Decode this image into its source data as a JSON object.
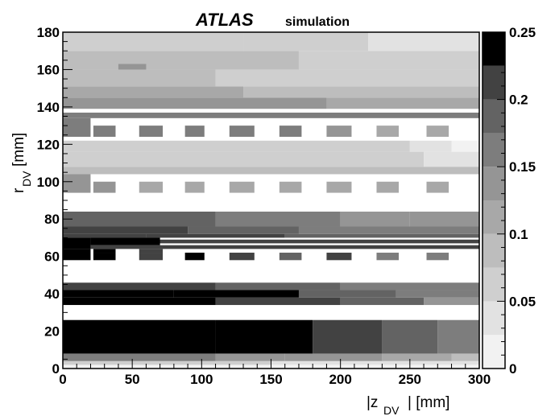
{
  "chart_data": {
    "type": "heatmap",
    "title": "ATLAS",
    "subtitle": "simulation",
    "xlabel": {
      "main": "|z",
      "sub": "DV",
      "tail": "| [mm]"
    },
    "ylabel": {
      "main": "r",
      "sub": "DV",
      "tail": " [mm]"
    },
    "xlim": [
      0,
      300
    ],
    "ylim": [
      0,
      180
    ],
    "x_ticks": [
      "0",
      "50",
      "100",
      "150",
      "200",
      "250",
      "300"
    ],
    "y_ticks": [
      "0",
      "20",
      "40",
      "60",
      "80",
      "100",
      "120",
      "140",
      "160",
      "180"
    ],
    "colorbar": {
      "min": 0,
      "max": 0.25,
      "levels": 10,
      "ticks": [
        "0",
        "0.05",
        "0.1",
        "0.15",
        "0.2",
        "0.25"
      ],
      "level_colors": [
        "#f2f2f2",
        "#e2e2e2",
        "#cfcfcf",
        "#bdbdbd",
        "#a8a8a8",
        "#959595",
        "#7d7d7d",
        "#636363",
        "#424242",
        "#000000"
      ]
    },
    "bands": [
      {
        "r": [
          0,
          2
        ],
        "segments": [
          [
            0,
            300,
            0.005
          ]
        ]
      },
      {
        "r": [
          2,
          4
        ],
        "segments": [
          [
            0,
            150,
            0.06
          ],
          [
            150,
            250,
            0.045
          ],
          [
            250,
            300,
            0.03
          ]
        ]
      },
      {
        "r": [
          4,
          8
        ],
        "segments": [
          [
            0,
            110,
            0.15
          ],
          [
            110,
            160,
            0.145
          ],
          [
            160,
            230,
            0.14
          ],
          [
            230,
            280,
            0.12
          ],
          [
            280,
            300,
            0.08
          ]
        ]
      },
      {
        "r": [
          8,
          26
        ],
        "segments": [
          [
            0,
            110,
            0.25
          ],
          [
            110,
            180,
            0.25
          ],
          [
            180,
            230,
            0.2
          ],
          [
            230,
            270,
            0.18
          ],
          [
            270,
            300,
            0.15
          ]
        ]
      },
      {
        "r": [
          26,
          34
        ],
        "segments": [
          [
            0,
            300,
            0.0
          ]
        ]
      },
      {
        "r": [
          34,
          38
        ],
        "segments": [
          [
            0,
            110,
            0.25
          ],
          [
            110,
            200,
            0.22
          ],
          [
            200,
            260,
            0.18
          ],
          [
            260,
            300,
            0.14
          ]
        ]
      },
      {
        "r": [
          38,
          42
        ],
        "segments": [
          [
            0,
            80,
            0.25
          ],
          [
            80,
            170,
            0.24
          ],
          [
            170,
            240,
            0.19
          ],
          [
            240,
            300,
            0.15
          ]
        ]
      },
      {
        "r": [
          42,
          46
        ],
        "segments": [
          [
            0,
            110,
            0.21
          ],
          [
            110,
            200,
            0.19
          ],
          [
            200,
            300,
            0.16
          ]
        ]
      },
      {
        "r": [
          46,
          56
        ],
        "segments": [
          [
            0,
            300,
            0.0
          ]
        ]
      },
      {
        "r": [
          56,
          58
        ],
        "segments": [
          [
            0,
            300,
            0.0
          ]
        ]
      },
      {
        "r": [
          58,
          64
        ],
        "segments": [
          [
            0,
            20,
            0.25
          ],
          [
            20,
            300,
            0.0
          ]
        ]
      },
      {
        "r": [
          64,
          70
        ],
        "segments": [
          [
            0,
            20,
            0.23
          ],
          [
            20,
            300,
            0.0
          ]
        ]
      },
      {
        "r": [
          70,
          72
        ],
        "segments": [
          [
            0,
            60,
            0.22
          ],
          [
            60,
            160,
            0.2
          ],
          [
            160,
            300,
            0.18
          ]
        ]
      },
      {
        "r": [
          72,
          76
        ],
        "segments": [
          [
            0,
            90,
            0.2
          ],
          [
            90,
            170,
            0.18
          ],
          [
            170,
            300,
            0.16
          ]
        ]
      },
      {
        "r": [
          76,
          84
        ],
        "segments": [
          [
            0,
            110,
            0.18
          ],
          [
            110,
            200,
            0.16
          ],
          [
            200,
            250,
            0.14
          ],
          [
            250,
            300,
            0.13
          ]
        ]
      },
      {
        "r": [
          84,
          94
        ],
        "segments": [
          [
            0,
            300,
            0.0
          ]
        ]
      },
      {
        "r": [
          94,
          104
        ],
        "segments": [
          [
            0,
            20,
            0.13
          ],
          [
            20,
            300,
            0.0
          ]
        ]
      },
      {
        "r": [
          104,
          108
        ],
        "segments": [
          [
            0,
            300,
            0.08
          ]
        ]
      },
      {
        "r": [
          108,
          116
        ],
        "segments": [
          [
            0,
            260,
            0.06
          ],
          [
            260,
            300,
            0.04
          ]
        ]
      },
      {
        "r": [
          116,
          122
        ],
        "segments": [
          [
            0,
            250,
            0.05
          ],
          [
            250,
            280,
            0.03
          ],
          [
            280,
            300,
            0.01
          ]
        ]
      },
      {
        "r": [
          122,
          124
        ],
        "segments": [
          [
            0,
            300,
            0.0
          ]
        ]
      },
      {
        "r": [
          124,
          134
        ],
        "segments": [
          [
            0,
            20,
            0.15
          ],
          [
            20,
            300,
            0.0
          ]
        ]
      },
      {
        "r": [
          134,
          137
        ],
        "segments": [
          [
            0,
            300,
            0.15
          ]
        ]
      },
      {
        "r": [
          137,
          139
        ],
        "segments": [
          [
            0,
            300,
            0.0
          ]
        ]
      },
      {
        "r": [
          139,
          145
        ],
        "segments": [
          [
            0,
            190,
            0.13
          ],
          [
            190,
            300,
            0.1
          ]
        ]
      },
      {
        "r": [
          145,
          151
        ],
        "segments": [
          [
            0,
            130,
            0.11
          ],
          [
            130,
            300,
            0.08
          ]
        ]
      },
      {
        "r": [
          151,
          160
        ],
        "segments": [
          [
            0,
            110,
            0.09
          ],
          [
            110,
            300,
            0.06
          ]
        ]
      },
      {
        "r": [
          160,
          170
        ],
        "segments": [
          [
            0,
            170,
            0.08
          ],
          [
            170,
            300,
            0.05
          ]
        ]
      },
      {
        "r": [
          170,
          180
        ],
        "segments": [
          [
            0,
            130,
            0.07
          ],
          [
            130,
            220,
            0.05
          ],
          [
            220,
            300,
            0.04
          ]
        ]
      }
    ],
    "blocks": [
      {
        "z": [
          22,
          38
        ],
        "r": [
          94,
          100
        ],
        "v": 0.13
      },
      {
        "z": [
          55,
          72
        ],
        "r": [
          94,
          100
        ],
        "v": 0.12
      },
      {
        "z": [
          88,
          102
        ],
        "r": [
          94,
          100
        ],
        "v": 0.12
      },
      {
        "z": [
          120,
          138
        ],
        "r": [
          94,
          100
        ],
        "v": 0.12
      },
      {
        "z": [
          156,
          172
        ],
        "r": [
          94,
          100
        ],
        "v": 0.12
      },
      {
        "z": [
          190,
          208
        ],
        "r": [
          94,
          100
        ],
        "v": 0.11
      },
      {
        "z": [
          226,
          242
        ],
        "r": [
          94,
          100
        ],
        "v": 0.1
      },
      {
        "z": [
          262,
          278
        ],
        "r": [
          94,
          100
        ],
        "v": 0.1
      },
      {
        "z": [
          22,
          38
        ],
        "r": [
          124,
          130
        ],
        "v": 0.15
      },
      {
        "z": [
          55,
          72
        ],
        "r": [
          124,
          130
        ],
        "v": 0.15
      },
      {
        "z": [
          88,
          102
        ],
        "r": [
          124,
          130
        ],
        "v": 0.15
      },
      {
        "z": [
          120,
          138
        ],
        "r": [
          124,
          130
        ],
        "v": 0.15
      },
      {
        "z": [
          156,
          172
        ],
        "r": [
          124,
          130
        ],
        "v": 0.15
      },
      {
        "z": [
          190,
          208
        ],
        "r": [
          124,
          130
        ],
        "v": 0.13
      },
      {
        "z": [
          226,
          242
        ],
        "r": [
          124,
          130
        ],
        "v": 0.12
      },
      {
        "z": [
          262,
          278
        ],
        "r": [
          124,
          130
        ],
        "v": 0.11
      },
      {
        "z": [
          22,
          38
        ],
        "r": [
          58,
          62
        ],
        "v": 0.25
      },
      {
        "z": [
          55,
          72
        ],
        "r": [
          58,
          62
        ],
        "v": 0.22
      },
      {
        "z": [
          88,
          102
        ],
        "r": [
          58,
          62
        ],
        "v": 0.24
      },
      {
        "z": [
          120,
          138
        ],
        "r": [
          58,
          62
        ],
        "v": 0.2
      },
      {
        "z": [
          156,
          172
        ],
        "r": [
          58,
          62
        ],
        "v": 0.19
      },
      {
        "z": [
          190,
          208
        ],
        "r": [
          58,
          62
        ],
        "v": 0.2
      },
      {
        "z": [
          226,
          242
        ],
        "r": [
          58,
          62
        ],
        "v": 0.17
      },
      {
        "z": [
          262,
          278
        ],
        "r": [
          58,
          62
        ],
        "v": 0.16
      },
      {
        "z": [
          22,
          38
        ],
        "r": [
          62,
          64
        ],
        "v": 0.25
      },
      {
        "z": [
          55,
          72
        ],
        "r": [
          62,
          64
        ],
        "v": 0.2
      },
      {
        "z": [
          20,
          300
        ],
        "r": [
          64,
          66
        ],
        "v": 0.21
      },
      {
        "z": [
          20,
          300
        ],
        "r": [
          67,
          69
        ],
        "v": 0.21
      },
      {
        "z": [
          20,
          70
        ],
        "r": [
          66,
          70
        ],
        "v": 0.25
      },
      {
        "z": [
          0,
          300
        ],
        "r": [
          93,
          94
        ],
        "v": 0.0
      },
      {
        "z": [
          40,
          60
        ],
        "r": [
          160,
          163
        ],
        "v": 0.13
      }
    ]
  }
}
